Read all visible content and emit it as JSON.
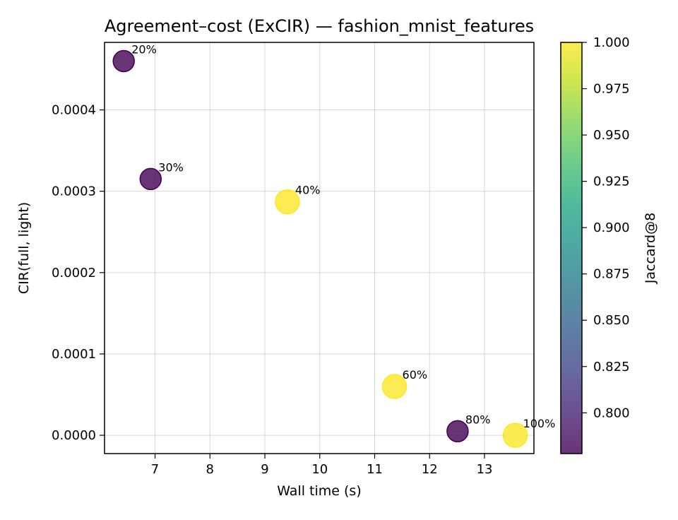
{
  "chart_data": {
    "type": "scatter",
    "title": "Agreement–cost (ExCIR) — fashion_mnist_features",
    "xlabel": "Wall time (s)",
    "ylabel": "CIR(full, light)",
    "xlim": [
      6.08,
      13.9
    ],
    "ylim": [
      -2.25e-05,
      0.000483
    ],
    "x_ticks": [
      7,
      8,
      9,
      10,
      11,
      12,
      13
    ],
    "y_ticks": [
      0.0,
      0.0001,
      0.0002,
      0.0003,
      0.0004
    ],
    "y_tick_labels": [
      "0.0000",
      "0.0001",
      "0.0002",
      "0.0003",
      "0.0004"
    ],
    "grid": true,
    "colorbar": {
      "label": "Jaccard@8",
      "range": [
        0.778,
        1.0
      ],
      "ticks": [
        0.8,
        0.825,
        0.85,
        0.875,
        0.9,
        0.925,
        0.95,
        0.975,
        1.0
      ],
      "tick_labels": [
        "0.800",
        "0.825",
        "0.850",
        "0.875",
        "0.900",
        "0.925",
        "0.950",
        "0.975",
        "1.000"
      ],
      "colormap": "viridis"
    },
    "points": [
      {
        "label": "20%",
        "x": 6.43,
        "y": 0.00046,
        "jaccard": 0.778,
        "size": "small"
      },
      {
        "label": "30%",
        "x": 6.92,
        "y": 0.000315,
        "jaccard": 0.778,
        "size": "small"
      },
      {
        "label": "40%",
        "x": 9.41,
        "y": 0.000287,
        "jaccard": 1.0,
        "size": "large"
      },
      {
        "label": "60%",
        "x": 11.36,
        "y": 6e-05,
        "jaccard": 1.0,
        "size": "large"
      },
      {
        "label": "80%",
        "x": 12.51,
        "y": 5e-06,
        "jaccard": 0.778,
        "size": "small"
      },
      {
        "label": "100%",
        "x": 13.56,
        "y": 0.0,
        "jaccard": 1.0,
        "size": "large"
      }
    ]
  }
}
